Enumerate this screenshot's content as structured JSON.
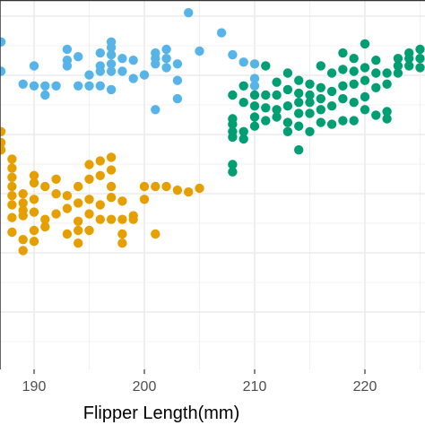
{
  "chart_data": {
    "type": "scatter",
    "title": "",
    "xlabel": "Flipper Length(mm)",
    "ylabel": "",
    "xlim": [
      187,
      226
    ],
    "x_ticks": [
      "190",
      "200",
      "210",
      "220"
    ],
    "grid": true,
    "legend": "none",
    "series": [
      {
        "color": "#56B4E9",
        "points": [
          [
            187,
            17.9
          ],
          [
            187,
            16.3
          ],
          [
            189,
            15.6
          ],
          [
            190,
            16.6
          ],
          [
            190,
            15.5
          ],
          [
            191,
            15.5
          ],
          [
            191,
            15.0
          ],
          [
            192,
            15.5
          ],
          [
            193,
            17.5
          ],
          [
            193,
            16.9
          ],
          [
            193,
            16.6
          ],
          [
            194,
            17.1
          ],
          [
            194,
            15.5
          ],
          [
            195,
            16.1
          ],
          [
            195,
            15.5
          ],
          [
            196,
            17.3
          ],
          [
            196,
            16.6
          ],
          [
            196,
            16.3
          ],
          [
            196,
            15.5
          ],
          [
            197,
            17.9
          ],
          [
            197,
            17.6
          ],
          [
            197,
            17.2
          ],
          [
            197,
            16.7
          ],
          [
            197,
            16.3
          ],
          [
            197,
            15.3
          ],
          [
            198,
            17.0
          ],
          [
            198,
            16.3
          ],
          [
            199,
            16.9
          ],
          [
            199,
            15.9
          ],
          [
            200,
            16.1
          ],
          [
            201,
            17.3
          ],
          [
            201,
            17.0
          ],
          [
            201,
            16.7
          ],
          [
            202,
            17.5
          ],
          [
            202,
            17.0
          ],
          [
            202,
            16.5
          ],
          [
            203,
            16.7
          ],
          [
            203,
            15.8
          ],
          [
            203,
            14.8
          ],
          [
            201,
            14.2
          ],
          [
            204,
            19.5
          ],
          [
            205,
            17.4
          ],
          [
            207,
            18.4
          ],
          [
            208,
            17.2
          ],
          [
            209,
            16.8
          ],
          [
            210,
            16.7
          ],
          [
            210,
            15.9
          ],
          [
            210,
            15.5
          ]
        ]
      },
      {
        "color": "#E69F00",
        "points": [
          [
            187,
            13.0
          ],
          [
            187,
            12.4
          ],
          [
            187,
            12.0
          ],
          [
            188,
            11.5
          ],
          [
            188,
            11.0
          ],
          [
            188,
            10.5
          ],
          [
            188,
            10.0
          ],
          [
            188,
            9.5
          ],
          [
            188,
            9.0
          ],
          [
            188,
            8.3
          ],
          [
            188,
            7.5
          ],
          [
            189,
            9.6
          ],
          [
            189,
            9.1
          ],
          [
            189,
            8.7
          ],
          [
            189,
            8.4
          ],
          [
            189,
            7.1
          ],
          [
            189,
            6.5
          ],
          [
            190,
            10.6
          ],
          [
            190,
            10.2
          ],
          [
            190,
            9.3
          ],
          [
            190,
            8.6
          ],
          [
            190,
            7.6
          ],
          [
            190,
            7.0
          ],
          [
            191,
            10.0
          ],
          [
            191,
            8.2
          ],
          [
            191,
            7.8
          ],
          [
            192,
            10.4
          ],
          [
            192,
            9.6
          ],
          [
            192,
            8.5
          ],
          [
            193,
            9.5
          ],
          [
            193,
            8.8
          ],
          [
            193,
            7.4
          ],
          [
            194,
            10.0
          ],
          [
            194,
            9.1
          ],
          [
            194,
            8.1
          ],
          [
            194,
            7.6
          ],
          [
            194,
            6.9
          ],
          [
            195,
            11.2
          ],
          [
            195,
            10.4
          ],
          [
            195,
            9.3
          ],
          [
            195,
            8.5
          ],
          [
            195,
            7.6
          ],
          [
            196,
            11.4
          ],
          [
            196,
            10.6
          ],
          [
            196,
            9.0
          ],
          [
            196,
            8.2
          ],
          [
            197,
            11.6
          ],
          [
            197,
            10.9
          ],
          [
            197,
            10.0
          ],
          [
            197,
            9.4
          ],
          [
            197,
            8.2
          ],
          [
            198,
            9.2
          ],
          [
            198,
            8.2
          ],
          [
            198,
            7.4
          ],
          [
            198,
            6.9
          ],
          [
            199,
            8.4
          ],
          [
            199,
            8.2
          ],
          [
            200,
            10.0
          ],
          [
            200,
            9.3
          ],
          [
            201,
            10.0
          ],
          [
            201,
            7.4
          ],
          [
            202,
            10.0
          ],
          [
            203,
            9.8
          ],
          [
            204,
            9.7
          ],
          [
            205,
            9.9
          ]
        ]
      },
      {
        "color": "#009E73",
        "points": [
          [
            208,
            15.0
          ],
          [
            208,
            13.7
          ],
          [
            208,
            13.4
          ],
          [
            208,
            13.0
          ],
          [
            208,
            12.7
          ],
          [
            208,
            11.2
          ],
          [
            208,
            10.8
          ],
          [
            209,
            15.5
          ],
          [
            209,
            14.6
          ],
          [
            209,
            13.0
          ],
          [
            209,
            12.6
          ],
          [
            210,
            15.0
          ],
          [
            210,
            14.4
          ],
          [
            210,
            13.8
          ],
          [
            210,
            13.3
          ],
          [
            211,
            16.6
          ],
          [
            211,
            15.0
          ],
          [
            211,
            14.3
          ],
          [
            211,
            13.6
          ],
          [
            212,
            15.7
          ],
          [
            212,
            15.0
          ],
          [
            212,
            14.2
          ],
          [
            212,
            13.8
          ],
          [
            213,
            16.2
          ],
          [
            213,
            15.3
          ],
          [
            213,
            14.4
          ],
          [
            213,
            13.5
          ],
          [
            213,
            13.0
          ],
          [
            214,
            15.8
          ],
          [
            214,
            15.1
          ],
          [
            214,
            14.6
          ],
          [
            214,
            14.0
          ],
          [
            214,
            13.3
          ],
          [
            214,
            12.0
          ],
          [
            215,
            15.6
          ],
          [
            215,
            15.0
          ],
          [
            215,
            14.6
          ],
          [
            215,
            14.0
          ],
          [
            215,
            13.0
          ],
          [
            216,
            16.6
          ],
          [
            216,
            15.4
          ],
          [
            216,
            14.8
          ],
          [
            216,
            14.2
          ],
          [
            216,
            13.5
          ],
          [
            217,
            16.2
          ],
          [
            217,
            15.2
          ],
          [
            217,
            14.4
          ],
          [
            217,
            13.4
          ],
          [
            218,
            17.3
          ],
          [
            218,
            16.4
          ],
          [
            218,
            15.5
          ],
          [
            218,
            14.8
          ],
          [
            218,
            13.6
          ],
          [
            219,
            17.0
          ],
          [
            219,
            16.3
          ],
          [
            219,
            15.6
          ],
          [
            219,
            14.6
          ],
          [
            219,
            13.6
          ],
          [
            220,
            17.8
          ],
          [
            220,
            16.5
          ],
          [
            220,
            15.8
          ],
          [
            220,
            14.9
          ],
          [
            220,
            14.2
          ],
          [
            221,
            16.9
          ],
          [
            221,
            16.2
          ],
          [
            221,
            15.4
          ],
          [
            221,
            13.9
          ],
          [
            222,
            16.2
          ],
          [
            222,
            15.6
          ],
          [
            222,
            14.1
          ],
          [
            222,
            13.7
          ],
          [
            223,
            17.0
          ],
          [
            223,
            16.6
          ],
          [
            223,
            16.2
          ],
          [
            224,
            17.3
          ],
          [
            224,
            17.0
          ],
          [
            224,
            16.6
          ],
          [
            225,
            17.5
          ],
          [
            225,
            17.0
          ],
          [
            225,
            16.5
          ],
          [
            226,
            17.5
          ],
          [
            226,
            17.0
          ]
        ]
      }
    ]
  }
}
